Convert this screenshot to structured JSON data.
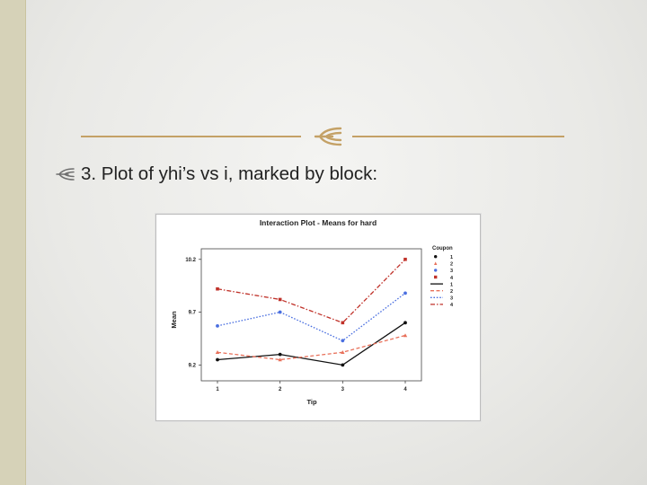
{
  "slide": {
    "bullet_text": "3. Plot of yhi’s vs i, marked by block:",
    "accent_color": "#c4a166",
    "icon": "three-line-curl-glyph"
  },
  "chart_data": {
    "type": "line",
    "title": "Interaction Plot - Means for hard",
    "xlabel": "Tip",
    "ylabel": "Mean",
    "categories": [
      "1",
      "2",
      "3",
      "4"
    ],
    "ylim": [
      9.05,
      10.3
    ],
    "yticks": [
      "9.2",
      "9.7",
      "10.2"
    ],
    "ytick_values": [
      9.2,
      9.7,
      10.2
    ],
    "legend": {
      "title": "Coupon",
      "placement": "right",
      "entries": [
        "1",
        "2",
        "3",
        "4",
        "1",
        "2",
        "3",
        "4"
      ]
    },
    "grid": false,
    "series": [
      {
        "name": "1",
        "values": [
          9.25,
          9.3,
          9.2,
          9.6
        ],
        "color": "#111111",
        "dash": "none",
        "marker": "circle"
      },
      {
        "name": "2",
        "values": [
          9.32,
          9.25,
          9.32,
          9.48
        ],
        "color": "#e8705a",
        "dash": "dash",
        "marker": "tri"
      },
      {
        "name": "3",
        "values": [
          9.57,
          9.7,
          9.43,
          9.88
        ],
        "color": "#4a6fe0",
        "dash": "dot",
        "marker": "circle"
      },
      {
        "name": "4",
        "values": [
          9.92,
          9.82,
          9.6,
          10.2
        ],
        "color": "#c0322a",
        "dash": "dashdot",
        "marker": "square"
      }
    ]
  }
}
